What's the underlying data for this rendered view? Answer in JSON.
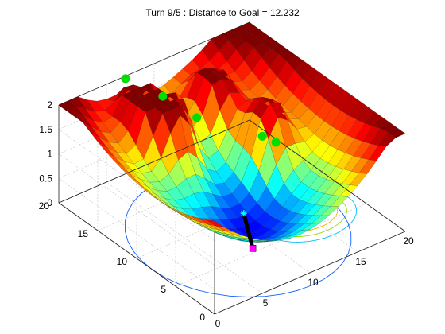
{
  "chart_data": {
    "type": "surface",
    "title": "Turn 9/5 : Distance to Goal = 12.232",
    "xlabel": "",
    "ylabel": "",
    "zlabel": "",
    "xlim": [
      0,
      20
    ],
    "ylim": [
      0,
      20
    ],
    "zlim": [
      0,
      2
    ],
    "x_ticks": [
      "0",
      "5",
      "10",
      "15",
      "20"
    ],
    "y_ticks": [
      "0",
      "5",
      "10",
      "15",
      "20"
    ],
    "z_ticks": [
      "0",
      "0.5",
      "1",
      "1.5",
      "2"
    ],
    "grid": true,
    "colormap": "jet",
    "peaks": [
      {
        "x": 6.5,
        "y": 16.5,
        "height": 2.0
      },
      {
        "x": 7.5,
        "y": 15.0,
        "height": 1.5
      },
      {
        "x": 12.5,
        "y": 16.0,
        "height": 1.1
      },
      {
        "x": 14.0,
        "y": 10.0,
        "height": 1.0
      }
    ],
    "goal_markers": [
      {
        "x": 5.2,
        "y": 17.8,
        "z": 2.35
      },
      {
        "x": 7.8,
        "y": 16.2,
        "z": 1.95
      },
      {
        "x": 11.2,
        "y": 16.0,
        "z": 1.25
      },
      {
        "x": 14.0,
        "y": 11.0,
        "z": 1.2
      },
      {
        "x": 15.0,
        "y": 10.5,
        "z": 1.05
      }
    ],
    "path": [
      {
        "x": 8.5,
        "y": 5.5,
        "z": 0.0
      },
      {
        "x": 10.0,
        "y": 8.5,
        "z": 0.25
      }
    ],
    "start_marker": {
      "x": 8.5,
      "y": 5.5,
      "z": 0.0,
      "color": "#ff00ff"
    },
    "current_marker": {
      "x": 10.0,
      "y": 8.5,
      "z": 0.25,
      "color": "#00ffff"
    },
    "colors": {
      "goal_marker": "#00e000",
      "path": "#000000",
      "box": "#262626",
      "grid": "#c8c8c8"
    }
  }
}
